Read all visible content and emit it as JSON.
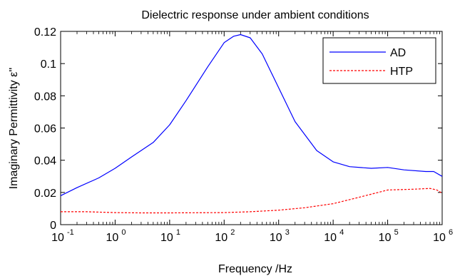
{
  "chart_data": {
    "type": "line",
    "title": "Dielectric response under ambient conditions",
    "xlabel": "Frequency /Hz",
    "ylabel": "Imaginary Permittivity ε''",
    "x_scale": "log",
    "xlim": [
      0.1,
      1000000
    ],
    "ylim": [
      0,
      0.12
    ],
    "x_ticks": [
      {
        "base": "10",
        "exp": "-1",
        "value": 0.1
      },
      {
        "base": "10",
        "exp": "0",
        "value": 1
      },
      {
        "base": "10",
        "exp": "1",
        "value": 10
      },
      {
        "base": "10",
        "exp": "2",
        "value": 100
      },
      {
        "base": "10",
        "exp": "3",
        "value": 1000
      },
      {
        "base": "10",
        "exp": "4",
        "value": 10000
      },
      {
        "base": "10",
        "exp": "5",
        "value": 100000
      },
      {
        "base": "10",
        "exp": "6",
        "value": 1000000
      }
    ],
    "y_ticks": [
      {
        "label": "0",
        "value": 0
      },
      {
        "label": "0.02",
        "value": 0.02
      },
      {
        "label": "0.04",
        "value": 0.04
      },
      {
        "label": "0.06",
        "value": 0.06
      },
      {
        "label": "0.08",
        "value": 0.08
      },
      {
        "label": "0.1",
        "value": 0.1
      },
      {
        "label": "0.12",
        "value": 0.12
      }
    ],
    "grid": false,
    "legend": "top-right",
    "series": [
      {
        "name": "AD",
        "color": "#0000ff",
        "line_style": "solid",
        "x": [
          0.1,
          0.2,
          0.5,
          1,
          2,
          5,
          10,
          20,
          50,
          100,
          150,
          200,
          300,
          500,
          1000,
          2000,
          5000,
          10000,
          20000,
          50000,
          100000,
          200000,
          500000,
          700000,
          1000000
        ],
        "y": [
          0.018,
          0.023,
          0.029,
          0.035,
          0.042,
          0.051,
          0.062,
          0.077,
          0.098,
          0.113,
          0.117,
          0.118,
          0.116,
          0.106,
          0.085,
          0.064,
          0.046,
          0.039,
          0.036,
          0.035,
          0.0355,
          0.034,
          0.033,
          0.033,
          0.03
        ]
      },
      {
        "name": "HTP",
        "color": "#ff0000",
        "line_style": "dashed",
        "x": [
          0.1,
          0.3,
          1,
          3,
          10,
          30,
          100,
          300,
          1000,
          3000,
          10000,
          30000,
          100000,
          300000,
          600000,
          800000,
          1000000
        ],
        "y": [
          0.008,
          0.008,
          0.0075,
          0.0073,
          0.0073,
          0.0074,
          0.0075,
          0.008,
          0.009,
          0.0105,
          0.013,
          0.017,
          0.0215,
          0.022,
          0.0225,
          0.0215,
          0.0195
        ]
      }
    ]
  }
}
